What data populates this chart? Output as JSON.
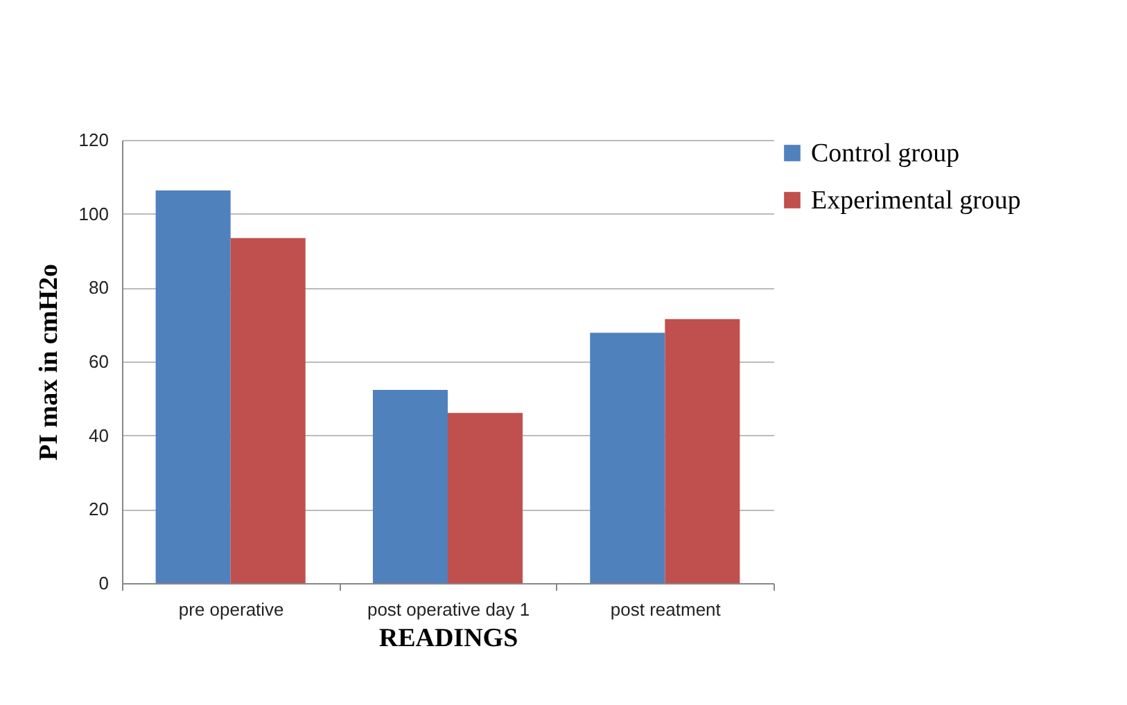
{
  "chart_data": {
    "type": "bar",
    "xlabel": "READINGS",
    "ylabel": "PI max in cmH2o",
    "categories": [
      "pre operative",
      "post operative day 1",
      "post reatment"
    ],
    "series": [
      {
        "name": "Control group",
        "color": "#4f81bd",
        "values": [
          106.3,
          52.3,
          67.8
        ]
      },
      {
        "name": "Experimental group",
        "color": "#c0504d",
        "values": [
          93.4,
          46.1,
          71.5
        ]
      }
    ],
    "ylim": [
      0,
      120
    ],
    "yticks": [
      0,
      20,
      40,
      60,
      80,
      100,
      120
    ],
    "grid": "y",
    "legend": "right"
  }
}
